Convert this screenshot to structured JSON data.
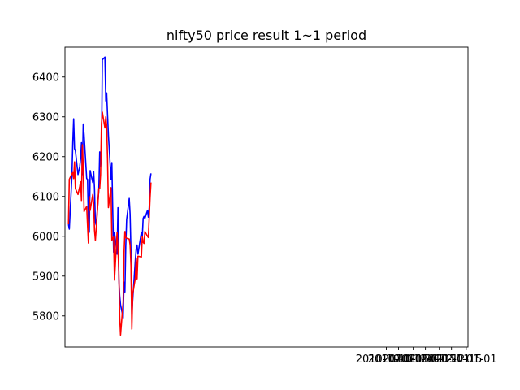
{
  "chart_data": {
    "type": "line",
    "title": "nifty50 price result 1~1 period",
    "xlabel": "",
    "ylabel": "",
    "x_axis_kind": "date",
    "xlim": [
      "2009-09-26",
      "2011-01-03"
    ],
    "ylim": [
      5722,
      6475
    ],
    "x_ticks": [
      "2010-10-01",
      "2010-10-15",
      "2010-11-01",
      "2010-11-15",
      "2010-12-01",
      "2010-12-15",
      "2011-01-01"
    ],
    "y_ticks": [
      5800,
      5900,
      6000,
      6100,
      6200,
      6300,
      6400
    ],
    "grid": false,
    "legend": "none",
    "series": [
      {
        "color": "#0000ff",
        "points": [
          [
            "2009-09-30",
            6030
          ],
          [
            "2009-10-01",
            6018
          ],
          [
            "2009-10-04",
            6150
          ],
          [
            "2009-10-05",
            6235
          ],
          [
            "2009-10-06",
            6295
          ],
          [
            "2009-10-07",
            6220
          ],
          [
            "2009-10-08",
            6215
          ],
          [
            "2009-10-11",
            6155
          ],
          [
            "2009-10-12",
            6165
          ],
          [
            "2009-10-13",
            6175
          ],
          [
            "2009-10-14",
            6195
          ],
          [
            "2009-10-15",
            6235
          ],
          [
            "2009-10-16",
            6155
          ],
          [
            "2009-10-17",
            6282
          ],
          [
            "2009-10-18",
            6255
          ],
          [
            "2009-10-21",
            6145
          ],
          [
            "2009-10-22",
            6143
          ],
          [
            "2009-10-23",
            6035
          ],
          [
            "2009-10-24",
            6010
          ],
          [
            "2009-10-25",
            6165
          ],
          [
            "2009-10-28",
            6135
          ],
          [
            "2009-10-29",
            6163
          ],
          [
            "2009-10-30",
            6120
          ],
          [
            "2009-10-31",
            6035
          ],
          [
            "2009-11-01",
            6028
          ],
          [
            "2009-11-04",
            6118
          ],
          [
            "2009-11-05",
            6212
          ],
          [
            "2009-11-06",
            6175
          ],
          [
            "2009-11-07",
            6195
          ],
          [
            "2009-11-08",
            6443
          ],
          [
            "2009-11-11",
            6450
          ],
          [
            "2009-11-12",
            6340
          ],
          [
            "2009-11-13",
            6360
          ],
          [
            "2009-11-14",
            6305
          ],
          [
            "2009-11-15",
            6255
          ],
          [
            "2009-11-18",
            6143
          ],
          [
            "2009-11-19",
            6185
          ],
          [
            "2009-11-20",
            6065
          ],
          [
            "2009-11-21",
            5960
          ],
          [
            "2009-11-22",
            6010
          ],
          [
            "2009-11-25",
            5955
          ],
          [
            "2009-11-26",
            6072
          ],
          [
            "2009-11-27",
            5895
          ],
          [
            "2009-11-28",
            5852
          ],
          [
            "2009-11-29",
            5828
          ],
          [
            "2009-12-02",
            5795
          ],
          [
            "2009-12-03",
            5885
          ],
          [
            "2009-12-04",
            5860
          ],
          [
            "2009-12-05",
            5975
          ],
          [
            "2009-12-06",
            6042
          ],
          [
            "2009-12-09",
            6095
          ],
          [
            "2009-12-10",
            6055
          ],
          [
            "2009-12-11",
            5960
          ],
          [
            "2009-12-12",
            5800
          ],
          [
            "2009-12-13",
            5840
          ],
          [
            "2009-12-16",
            5940
          ],
          [
            "2009-12-17",
            5968
          ],
          [
            "2009-12-18",
            5978
          ],
          [
            "2009-12-19",
            5955
          ],
          [
            "2009-12-23",
            6010
          ],
          [
            "2009-12-24",
            5998
          ],
          [
            "2009-12-25",
            6045
          ],
          [
            "2009-12-26",
            6050
          ],
          [
            "2009-12-27",
            6045
          ],
          [
            "2009-12-30",
            6065
          ],
          [
            "2009-12-31",
            6048
          ],
          [
            "2010-01-01",
            6072
          ],
          [
            "2010-01-02",
            6143
          ],
          [
            "2010-01-03",
            6158
          ]
        ]
      },
      {
        "color": "#ff0000",
        "points": [
          [
            "2009-09-30",
            6030
          ],
          [
            "2009-10-01",
            6143
          ],
          [
            "2009-10-04",
            6157
          ],
          [
            "2009-10-05",
            6160
          ],
          [
            "2009-10-06",
            6145
          ],
          [
            "2009-10-07",
            6187
          ],
          [
            "2009-10-08",
            6120
          ],
          [
            "2009-10-11",
            6105
          ],
          [
            "2009-10-12",
            6115
          ],
          [
            "2009-10-13",
            6125
          ],
          [
            "2009-10-14",
            6137
          ],
          [
            "2009-10-15",
            6090
          ],
          [
            "2009-10-16",
            6230
          ],
          [
            "2009-10-17",
            6178
          ],
          [
            "2009-10-18",
            6062
          ],
          [
            "2009-10-21",
            6075
          ],
          [
            "2009-10-22",
            6027
          ],
          [
            "2009-10-23",
            5983
          ],
          [
            "2009-10-24",
            6100
          ],
          [
            "2009-10-25",
            6065
          ],
          [
            "2009-10-28",
            6105
          ],
          [
            "2009-10-29",
            6082
          ],
          [
            "2009-10-30",
            6015
          ],
          [
            "2009-10-31",
            5990
          ],
          [
            "2009-11-01",
            6020
          ],
          [
            "2009-11-04",
            6120
          ],
          [
            "2009-11-05",
            6120
          ],
          [
            "2009-11-06",
            6155
          ],
          [
            "2009-11-07",
            6283
          ],
          [
            "2009-11-08",
            6312
          ],
          [
            "2009-11-11",
            6272
          ],
          [
            "2009-11-12",
            6300
          ],
          [
            "2009-11-13",
            6277
          ],
          [
            "2009-11-14",
            6195
          ],
          [
            "2009-11-15",
            6072
          ],
          [
            "2009-11-18",
            6122
          ],
          [
            "2009-11-19",
            5990
          ],
          [
            "2009-11-20",
            5995
          ],
          [
            "2009-11-21",
            5998
          ],
          [
            "2009-11-22",
            5890
          ],
          [
            "2009-11-25",
            6010
          ],
          [
            "2009-11-26",
            5970
          ],
          [
            "2009-11-27",
            5912
          ],
          [
            "2009-11-28",
            5800
          ],
          [
            "2009-11-29",
            5752
          ],
          [
            "2009-12-02",
            5835
          ],
          [
            "2009-12-03",
            5957
          ],
          [
            "2009-12-04",
            6012
          ],
          [
            "2009-12-05",
            5997
          ],
          [
            "2009-12-06",
            5995
          ],
          [
            "2009-12-09",
            5993
          ],
          [
            "2009-12-10",
            5978
          ],
          [
            "2009-12-11",
            5925
          ],
          [
            "2009-12-12",
            5767
          ],
          [
            "2009-12-13",
            5855
          ],
          [
            "2009-12-16",
            5895
          ],
          [
            "2009-12-17",
            5945
          ],
          [
            "2009-12-18",
            5893
          ],
          [
            "2009-12-19",
            5950
          ],
          [
            "2009-12-23",
            5948
          ],
          [
            "2009-12-24",
            6000
          ],
          [
            "2009-12-25",
            5985
          ],
          [
            "2009-12-26",
            5982
          ],
          [
            "2009-12-27",
            6012
          ],
          [
            "2009-12-30",
            6000
          ],
          [
            "2009-12-31",
            5997
          ],
          [
            "2010-01-01",
            6048
          ],
          [
            "2010-01-02",
            6097
          ],
          [
            "2010-01-03",
            6135
          ]
        ]
      }
    ]
  }
}
